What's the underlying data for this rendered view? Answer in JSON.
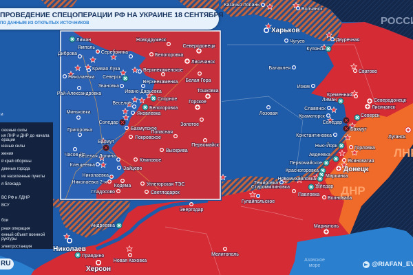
{
  "header": {
    "title": "ПРОВЕДЕНИЕ СПЕЦОПЕРАЦИИ РФ НА УКРАИНЕ 18 СЕНТЯБРЯ",
    "subtitle": "ПО ДАННЫМ ИЗ ОТКРЫТЫХ ИСТОЧНИКОВ"
  },
  "colors": {
    "ukraine_controlled": "#1e5ba8",
    "russian_controlled": "#d42b35",
    "dnr_lnr": "#f06a2a",
    "russia": "#13284a",
    "contested_hatch": "#c8643c",
    "sea": "#2a7fcf"
  },
  "regions": {
    "russia": "РОССИЯ",
    "dnr": "ДНР",
    "lnr": "ЛНР",
    "sea_line1": "Азовское",
    "sea_line2": "море"
  },
  "legend": {
    "heading": "и",
    "items": [
      "оюзные силы",
      "ия ЛНР и ДНР до начала",
      "ерации",
      "юзные силы",
      "жения",
      "й край обороны",
      "денные города",
      "ие населенные пункты",
      "я блокада",
      "ВС РФ и ЛДНР",
      "ВСУ",
      "бои",
      "рная операция",
      "енный объект военной",
      "руктуры",
      "электростанция"
    ]
  },
  "footer": {
    "site": "RU",
    "telegram": "@RIAFAN_EVE",
    "telegram_icon": "telegram-icon"
  },
  "markers": {
    "blue-dot": "ukrainian-held-town-icon",
    "red-dot": "liberated-town-icon",
    "teal-cross": "fighting-icon",
    "black-cross": "special-operation-icon",
    "hospital": "medical-icon",
    "explosion": "strike-icon"
  },
  "cities": [
    {
      "name": "Казачья Лопань",
      "marker": "blue-dot"
    },
    {
      "name": "Волчанск",
      "marker": "blue-dot"
    },
    {
      "name": "Харьков",
      "marker": "blue-dot"
    },
    {
      "name": "Чугуев",
      "marker": "blue-dot"
    },
    {
      "name": "Двуречная",
      "marker": "blue-dot"
    },
    {
      "name": "Купянск",
      "marker": "teal-cross"
    },
    {
      "name": "Балаклея",
      "marker": "blue-dot"
    },
    {
      "name": "Сватово",
      "marker": "red-dot"
    },
    {
      "name": "Изюм",
      "marker": "blue-dot"
    },
    {
      "name": "Кременная",
      "marker": "red-dot"
    },
    {
      "name": "Лиман",
      "marker": "teal-cross"
    },
    {
      "name": "Северодонецк",
      "marker": "hospital"
    },
    {
      "name": "Лисичанск",
      "marker": "hospital"
    },
    {
      "name": "Славянск",
      "marker": "blue-dot"
    },
    {
      "name": "Лозовая",
      "marker": "blue-dot"
    },
    {
      "name": "Краматорск",
      "marker": "blue-dot"
    },
    {
      "name": "Северск",
      "marker": "teal-cross"
    },
    {
      "name": "Соледар",
      "marker": "black-cross"
    },
    {
      "name": "Бахмут",
      "marker": "black-cross"
    },
    {
      "name": "Константиновка",
      "marker": "blue-dot"
    },
    {
      "name": "Луганск",
      "marker": "hospital"
    },
    {
      "name": "Нью-Йорк",
      "marker": "teal-cross"
    },
    {
      "name": "Горловка",
      "marker": "red-dot"
    },
    {
      "name": "Авдеевка",
      "marker": "teal-cross"
    },
    {
      "name": "Ясиноватая",
      "marker": "red-dot"
    },
    {
      "name": "Первомайское",
      "marker": "teal-cross"
    },
    {
      "name": "Донецк",
      "marker": "hospital"
    },
    {
      "name": "Красногоровка",
      "marker": "teal-cross"
    },
    {
      "name": "Марьинка",
      "marker": "teal-cross"
    },
    {
      "name": "Новомихайловка",
      "marker": "teal-cross"
    },
    {
      "name": "Темировка",
      "marker": "blue-dot"
    },
    {
      "name": "Угледар",
      "marker": "teal-cross"
    },
    {
      "name": "Староммлиновка",
      "marker": "none"
    },
    {
      "name": "Павловка",
      "marker": "red-dot"
    },
    {
      "name": "Волноваха",
      "marker": "red-dot"
    },
    {
      "name": "Гулайпольское",
      "marker": "blue-dot"
    },
    {
      "name": "Энергодар",
      "marker": "red-dot"
    },
    {
      "name": "Андреевка",
      "marker": "teal-cross"
    },
    {
      "name": "Николаев",
      "marker": "blue-dot"
    },
    {
      "name": "Правдино",
      "marker": "teal-cross"
    },
    {
      "name": "Херсон",
      "marker": "red-dot"
    },
    {
      "name": "Новая Каховка",
      "marker": "red-dot"
    },
    {
      "name": "Мелитополь",
      "marker": "red-dot"
    },
    {
      "name": "Мариуполь",
      "marker": "hospital"
    }
  ],
  "inset_cities": [
    {
      "name": "Лиман",
      "marker": "teal-cross"
    },
    {
      "name": "Ямполь",
      "marker": "red-dot"
    },
    {
      "name": "Серебрянка",
      "marker": "blue-dot"
    },
    {
      "name": "Новодружеск",
      "marker": "red-dot"
    },
    {
      "name": "Северодонецк",
      "marker": "hospital"
    },
    {
      "name": "Белогоровка",
      "marker": "red-dot"
    },
    {
      "name": "Лисичанск",
      "marker": "hospital"
    },
    {
      "name": "Диброва",
      "marker": "blue-dot"
    },
    {
      "name": "Кривая Лука",
      "marker": "blue-dot"
    },
    {
      "name": "Верхнекаменское",
      "marker": "blue-dot"
    },
    {
      "name": "Николаевка",
      "marker": "blue-dot"
    },
    {
      "name": "Северск",
      "marker": "teal-cross"
    },
    {
      "name": "Верхнекаменка",
      "marker": "red-dot"
    },
    {
      "name": "Белая Гора",
      "marker": "red-dot"
    },
    {
      "name": "Звановка",
      "marker": "blue-dot"
    },
    {
      "name": "Ивано-Дарьевка",
      "marker": "blue-dot"
    },
    {
      "name": "Рай-Александровка",
      "marker": "blue-dot"
    },
    {
      "name": "Тошковка",
      "marker": "hospital"
    },
    {
      "name": "Спорное",
      "marker": "teal-cross"
    },
    {
      "name": "Горское",
      "marker": "hospital"
    },
    {
      "name": "Белогоровка",
      "marker": "teal-cross"
    },
    {
      "name": "Веселое",
      "marker": "blue-dot"
    },
    {
      "name": "Миньковка",
      "marker": "blue-dot"
    },
    {
      "name": "Яковлевка",
      "marker": "blue-dot"
    },
    {
      "name": "Соледар",
      "marker": "black-cross"
    },
    {
      "name": "Золотое",
      "marker": "red-dot"
    },
    {
      "name": "Бахмутское",
      "marker": "blue-dot"
    },
    {
      "name": "Попасная",
      "marker": "red-dot"
    },
    {
      "name": "Григоровка",
      "marker": "blue-dot"
    },
    {
      "name": "Покровское",
      "marker": "red-dot"
    },
    {
      "name": "Бахмут",
      "marker": "black-cross"
    },
    {
      "name": "Первомайск",
      "marker": "red-dot"
    },
    {
      "name": "Выскрива",
      "marker": "red-dot"
    },
    {
      "name": "Часов Яр",
      "marker": "blue-dot"
    },
    {
      "name": "Веселая Долина",
      "marker": "blue-dot"
    },
    {
      "name": "Клиновое",
      "marker": "red-dot"
    },
    {
      "name": "Клещеевка",
      "marker": "blue-dot"
    },
    {
      "name": "Зайцево",
      "marker": "blue-dot"
    },
    {
      "name": "Николаевка",
      "marker": "red-dot"
    },
    {
      "name": "Николаевка 2-я",
      "marker": "red-dot"
    },
    {
      "name": "Кодема",
      "marker": "red-dot"
    },
    {
      "name": "Углегорская ТЭС",
      "marker": "red-dot"
    },
    {
      "name": "Гладосово",
      "marker": "red-dot"
    },
    {
      "name": "Светлодарск",
      "marker": "red-dot"
    }
  ]
}
